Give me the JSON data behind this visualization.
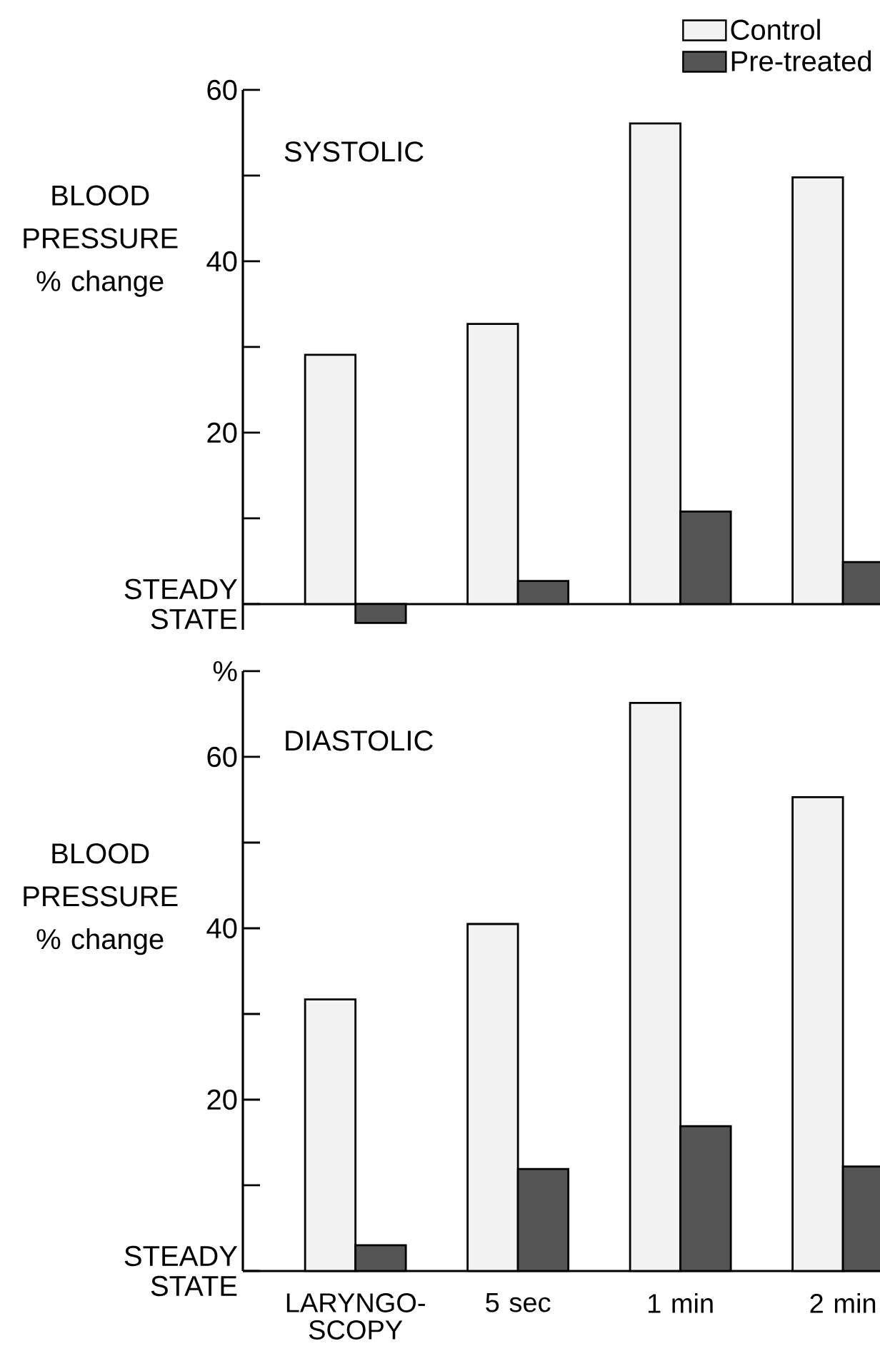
{
  "chart_data": [
    {
      "type": "bar",
      "title": "SYSTOLIC",
      "ylabel": "BLOOD PRESSURE % change",
      "categories": [
        null,
        null,
        null,
        null
      ],
      "series": [
        {
          "name": "Control",
          "color": "#f2f2f2",
          "values": [
            29.1,
            32.7,
            56.1,
            49.8
          ]
        },
        {
          "name": "Pre-treated",
          "color": "#555555",
          "values": [
            -2.2,
            2.7,
            10.8,
            4.9
          ]
        }
      ],
      "ylim": [
        -3,
        60
      ],
      "yticks": [
        {
          "value": 0,
          "label": "STEADY STATE"
        },
        {
          "value": 10,
          "label": null
        },
        20,
        {
          "value": 30,
          "label": null
        },
        40,
        {
          "value": 50,
          "label": null
        },
        60
      ],
      "legend": "top right",
      "tick_labels": "y"
    },
    {
      "type": "bar",
      "title": "DIASTOLIC",
      "ylabel": "BLOOD PRESSURE % change",
      "categories": [
        "LARYNGO-SCOPY",
        "5 sec",
        "1 min",
        "2 min"
      ],
      "series": [
        {
          "color": "#f2f2f2",
          "values": [
            31.7,
            40.5,
            66.3,
            55.3
          ]
        },
        {
          "color": "#555555",
          "values": [
            3.0,
            11.9,
            16.9,
            12.2
          ]
        }
      ],
      "ylim": [
        0,
        70
      ],
      "yticks": [
        {
          "value": 0,
          "label": "STEADY STATE"
        },
        {
          "value": 10,
          "label": null
        },
        20,
        {
          "value": 30,
          "label": null
        },
        40,
        {
          "value": 50,
          "label": null
        },
        60,
        {
          "value": 70,
          "label": "%"
        }
      ]
    }
  ]
}
